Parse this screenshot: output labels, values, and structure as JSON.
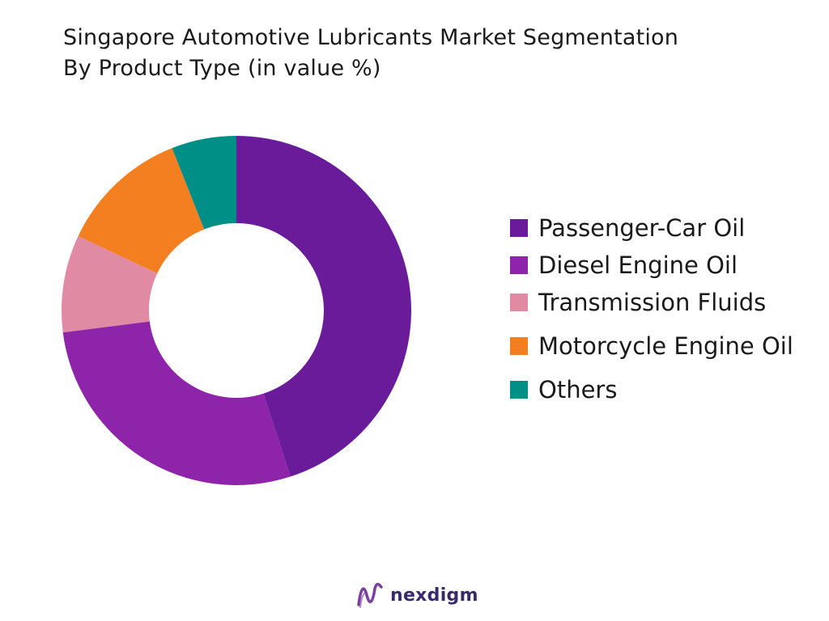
{
  "chart_data": {
    "type": "pie",
    "title": "Singapore Automotive Lubricants Market Segmentation",
    "subtitle": "By Product Type (in value %)",
    "donut": true,
    "legend_position": "right",
    "slices": [
      {
        "label": "Passenger-Car Oil",
        "value": 45,
        "color": "#6a1b9a"
      },
      {
        "label": "Diesel Engine Oil",
        "value": 28,
        "color": "#8e24aa"
      },
      {
        "label": "Transmission Fluids",
        "value": 9,
        "color": "#e08aa3"
      },
      {
        "label": "Motorcycle Engine Oil",
        "value": 12,
        "color": "#f47f20"
      },
      {
        "label": "Others",
        "value": 6,
        "color": "#008f86"
      }
    ]
  },
  "brand": {
    "name": "nexdigm",
    "logo_icon": "nexdigm-logo-icon",
    "logo_color": "#7b3fa0"
  }
}
